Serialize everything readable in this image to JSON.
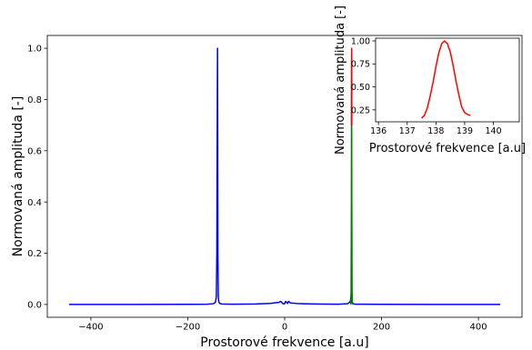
{
  "chart_data": [
    {
      "type": "line",
      "role": "main",
      "xlabel": "Prostorové frekvence [a.u]",
      "ylabel": "Normovaná amplituda [-]",
      "xlim": [
        -490,
        490
      ],
      "ylim": [
        -0.05,
        1.05
      ],
      "xticks": [
        -400,
        -200,
        0,
        200,
        400
      ],
      "yticks": [
        0.0,
        0.2,
        0.4,
        0.6,
        0.8,
        1.0
      ],
      "xtick_labels": [
        "−400",
        "−200",
        "0",
        "200",
        "400"
      ],
      "ytick_labels": [
        "0.0",
        "0.2",
        "0.4",
        "0.6",
        "0.8",
        "1.0"
      ],
      "grid": false,
      "series": [
        {
          "color": "#0000ff",
          "x": [
            -445,
            -300,
            -200,
            -160,
            -147,
            -143,
            -141,
            -140,
            -139.2,
            -138.6,
            -138.2,
            -137.8,
            -137,
            -136,
            -134,
            -130,
            -110,
            -60,
            -30,
            -12,
            -8,
            -6,
            -4,
            -2,
            0,
            2,
            4,
            6,
            8,
            12,
            30,
            60,
            110,
            130,
            134,
            136,
            137,
            137.8,
            138.2,
            138.6,
            139.2,
            140,
            141,
            143,
            147,
            160,
            200,
            300,
            445
          ],
          "y": [
            0.0,
            0.0,
            0.0005,
            0.001,
            0.003,
            0.008,
            0.03,
            0.2,
            0.65,
            1.0,
            0.65,
            0.2,
            0.03,
            0.01,
            0.004,
            0.002,
            0.001,
            0.002,
            0.004,
            0.008,
            0.012,
            0.008,
            0.004,
            0.002,
            0.003,
            0.012,
            0.008,
            0.004,
            0.012,
            0.006,
            0.003,
            0.002,
            0.001,
            0.003,
            0.008,
            0.015,
            0.03,
            0.04,
            0.035,
            0.02,
            0.01,
            0.005,
            0.003,
            0.002,
            0.001,
            0.001,
            0.0005,
            0.0,
            0.0
          ]
        },
        {
          "color": "#008000",
          "x": [
            136.5,
            137.2,
            137.8,
            138.2,
            138.6,
            139.2,
            140
          ],
          "y": [
            0.0,
            0.05,
            0.4,
            0.95,
            0.4,
            0.05,
            0.0
          ]
        },
        {
          "color": "#ff0000",
          "x": [
            138.0,
            138.2,
            138.35,
            138.5,
            138.7
          ],
          "y": [
            0.7,
            0.95,
            1.0,
            0.95,
            0.7
          ]
        }
      ]
    },
    {
      "type": "line",
      "role": "inset",
      "xlabel": "Prostorové frekvence [a.u]",
      "ylabel": "Normovaná amplituda [-]",
      "xlim": [
        135.9,
        140.9
      ],
      "ylim": [
        0.12,
        1.03
      ],
      "xticks": [
        136,
        137,
        138,
        139,
        140
      ],
      "yticks": [
        0.25,
        0.5,
        0.75,
        1.0
      ],
      "xtick_labels": [
        "136",
        "137",
        "138",
        "139",
        "140"
      ],
      "ytick_labels": [
        "0.25",
        "0.50",
        "0.75",
        "1.00"
      ],
      "grid": false,
      "series": [
        {
          "color": "#ff0000",
          "x": [
            137.5,
            137.6,
            137.7,
            137.8,
            137.9,
            138.0,
            138.1,
            138.2,
            138.3,
            138.4,
            138.5,
            138.6,
            138.7,
            138.8,
            138.9,
            139.0,
            139.1,
            139.2
          ],
          "y": [
            0.16,
            0.19,
            0.27,
            0.4,
            0.55,
            0.72,
            0.87,
            0.97,
            1.0,
            0.97,
            0.88,
            0.73,
            0.56,
            0.41,
            0.28,
            0.22,
            0.2,
            0.19
          ]
        }
      ]
    }
  ]
}
